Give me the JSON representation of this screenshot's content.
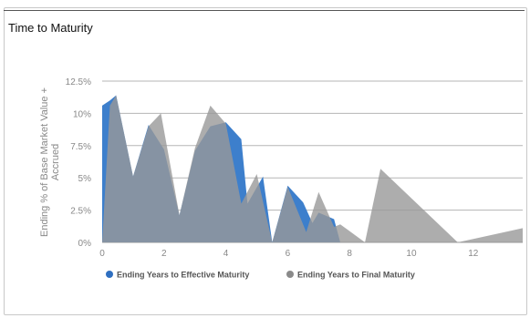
{
  "chart_data": {
    "type": "area",
    "title": "Time to Maturity",
    "xlabel": "",
    "ylabel_lines": [
      "Ending % of Base Market Value +",
      "Accrued"
    ],
    "xlim": [
      0,
      13.6
    ],
    "ylim": [
      0,
      12.5
    ],
    "x_ticks": [
      0,
      2,
      4,
      6,
      8,
      10,
      12
    ],
    "y_ticks": [
      0,
      2.5,
      5,
      7.5,
      10,
      12.5
    ],
    "y_tick_labels": [
      "0%",
      "2.5%",
      "5%",
      "7.5%",
      "10%",
      "12.5%"
    ],
    "grid": true,
    "legend_position": "bottom",
    "series": [
      {
        "name": "Ending Years to Effective Maturity",
        "color": "#3d7fcc",
        "points": [
          [
            0,
            10.6
          ],
          [
            0.25,
            11
          ],
          [
            0.45,
            11.4
          ],
          [
            1,
            5.1
          ],
          [
            1.5,
            9.1
          ],
          [
            2,
            7.2
          ],
          [
            2.5,
            2.1
          ],
          [
            3,
            7.1
          ],
          [
            3.5,
            9
          ],
          [
            4,
            9.3
          ],
          [
            4.5,
            8
          ],
          [
            4.7,
            3
          ],
          [
            5.2,
            5.1
          ],
          [
            5.5,
            0
          ],
          [
            6,
            4.4
          ],
          [
            6.5,
            3.1
          ],
          [
            6.8,
            1.5
          ],
          [
            7,
            2.3
          ],
          [
            7.5,
            1.8
          ],
          [
            7.7,
            0
          ]
        ]
      },
      {
        "name": "Ending Years to Final Maturity",
        "color": "#999999",
        "points": [
          [
            0,
            0
          ],
          [
            0.25,
            10.6
          ],
          [
            0.45,
            11.4
          ],
          [
            1,
            5.1
          ],
          [
            1.5,
            9
          ],
          [
            1.9,
            10
          ],
          [
            2.5,
            2.1
          ],
          [
            3,
            7.3
          ],
          [
            3.5,
            10.6
          ],
          [
            4,
            9.2
          ],
          [
            4.5,
            3
          ],
          [
            5,
            5.3
          ],
          [
            5.5,
            0
          ],
          [
            6,
            4.3
          ],
          [
            6.6,
            0.8
          ],
          [
            7,
            3.9
          ],
          [
            7.5,
            1.2
          ],
          [
            7.7,
            1.4
          ],
          [
            8.5,
            0
          ],
          [
            9,
            5.7
          ],
          [
            11.5,
            0
          ],
          [
            13.6,
            1.1
          ]
        ]
      }
    ]
  }
}
